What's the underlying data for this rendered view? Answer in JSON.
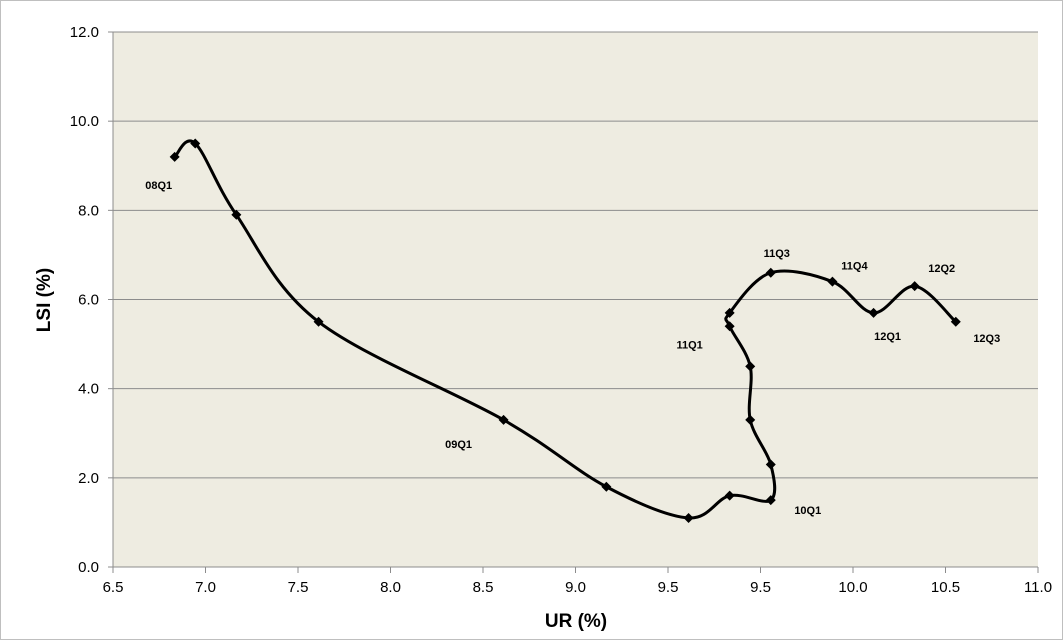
{
  "chart_data": {
    "type": "scatter",
    "xlabel": "UR (%)",
    "ylabel": "LSI (%)",
    "xlim": [
      6.5,
      11.0
    ],
    "ylim": [
      0.0,
      12.0
    ],
    "x_ticks": [
      "6.5",
      "7.0",
      "7.5",
      "8.0",
      "8.5",
      "9.0",
      "9.5",
      "9.5",
      "10.0",
      "10.5",
      "11.0"
    ],
    "y_ticks": [
      "0.0",
      "2.0",
      "4.0",
      "6.0",
      "8.0",
      "10.0",
      "12.0"
    ],
    "grid": "horizontal",
    "plot_background": "#eeece1",
    "line_color": "#000000",
    "smoothed": true,
    "marker": "diamond",
    "series": [
      {
        "points": [
          {
            "x": 6.8,
            "y": 9.2,
            "label": "08Q1"
          },
          {
            "x": 6.9,
            "y": 9.5,
            "label": ""
          },
          {
            "x": 7.1,
            "y": 7.9,
            "label": ""
          },
          {
            "x": 7.5,
            "y": 5.5,
            "label": ""
          },
          {
            "x": 8.4,
            "y": 3.3,
            "label": "09Q1"
          },
          {
            "x": 8.9,
            "y": 1.8,
            "label": ""
          },
          {
            "x": 9.3,
            "y": 1.1,
            "label": ""
          },
          {
            "x": 9.5,
            "y": 1.6,
            "label": ""
          },
          {
            "x": 9.7,
            "y": 1.5,
            "label": "10Q1"
          },
          {
            "x": 9.7,
            "y": 2.3,
            "label": ""
          },
          {
            "x": 9.6,
            "y": 3.3,
            "label": ""
          },
          {
            "x": 9.6,
            "y": 4.5,
            "label": ""
          },
          {
            "x": 9.5,
            "y": 5.4,
            "label": "11Q1"
          },
          {
            "x": 9.5,
            "y": 5.7,
            "label": ""
          },
          {
            "x": 9.7,
            "y": 6.6,
            "label": "11Q3"
          },
          {
            "x": 10.0,
            "y": 6.4,
            "label": "11Q4"
          },
          {
            "x": 10.2,
            "y": 5.7,
            "label": "12Q1"
          },
          {
            "x": 10.4,
            "y": 6.3,
            "label": "12Q2"
          },
          {
            "x": 10.6,
            "y": 5.5,
            "label": "12Q3"
          }
        ]
      }
    ]
  }
}
